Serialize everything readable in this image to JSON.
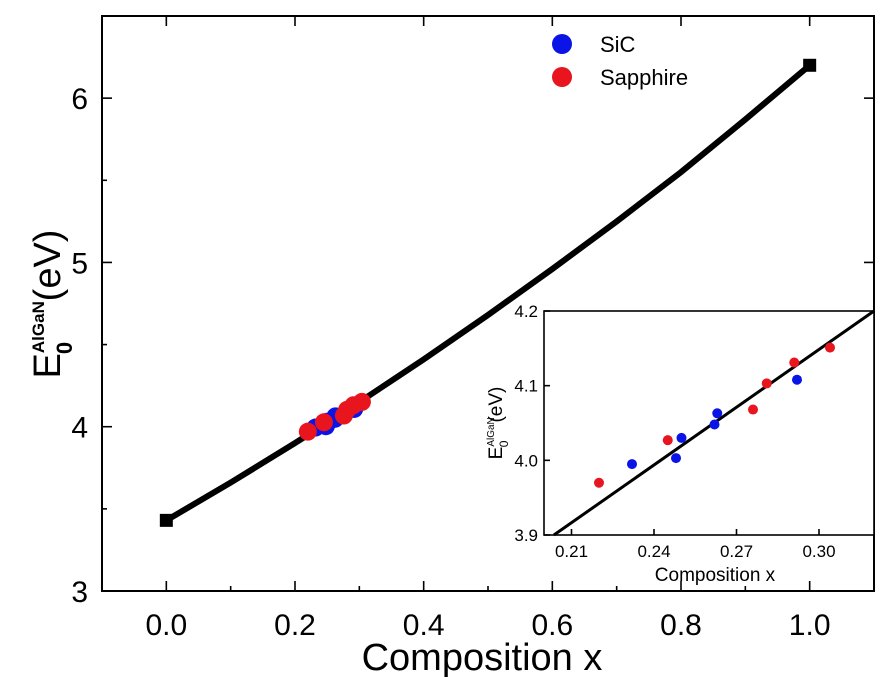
{
  "chart_data": [
    {
      "type": "line",
      "xlabel": "Composition x",
      "ylabel": {
        "main": "E",
        "sub": "0",
        "sup": "AlGaN",
        "unit": " (eV)"
      },
      "xlim": [
        -0.1,
        1.1
      ],
      "ylim": [
        3.0,
        6.5
      ],
      "xticks": [
        0.0,
        0.2,
        0.4,
        0.6,
        0.8,
        1.0
      ],
      "xtick_labels": [
        "0.0",
        "0.2",
        "0.4",
        "0.6",
        "0.8",
        "1.0"
      ],
      "yticks": [
        3,
        4,
        5,
        6
      ],
      "ytick_labels": [
        "3",
        "4",
        "5",
        "6"
      ],
      "grid": false,
      "legend_position": "top-right",
      "curve": {
        "x": [
          0.0,
          0.1,
          0.2,
          0.3,
          0.4,
          0.5,
          0.6,
          0.7,
          0.8,
          0.9,
          1.0
        ],
        "y": [
          3.43,
          3.66,
          3.9,
          4.15,
          4.41,
          4.68,
          4.96,
          5.25,
          5.55,
          5.87,
          6.2
        ]
      },
      "endpoints": {
        "x": [
          0.0,
          1.0
        ],
        "y": [
          3.43,
          6.2
        ],
        "color": "#000000"
      },
      "series": [
        {
          "name": "SiC",
          "color": "#0a14e6",
          "x": [
            0.232,
            0.248,
            0.25,
            0.262,
            0.263,
            0.292
          ],
          "y": [
            3.995,
            4.003,
            4.03,
            4.048,
            4.063,
            4.108
          ]
        },
        {
          "name": "Sapphire",
          "color": "#e8141e",
          "x": [
            0.22,
            0.245,
            0.276,
            0.281,
            0.291,
            0.304
          ],
          "y": [
            3.97,
            4.027,
            4.068,
            4.103,
            4.131,
            4.151
          ]
        }
      ]
    },
    {
      "type": "scatter",
      "inset": true,
      "xlabel": "Composition x",
      "ylabel": {
        "main": "E",
        "sub": "0",
        "sup": "AlGaN",
        "unit": "(eV)"
      },
      "xlim": [
        0.2,
        0.32
      ],
      "ylim": [
        3.9,
        4.2
      ],
      "xticks": [
        0.21,
        0.24,
        0.27,
        0.3
      ],
      "xtick_labels": [
        "0.21",
        "0.24",
        "0.27",
        "0.30"
      ],
      "yticks": [
        3.9,
        4.0,
        4.1,
        4.2
      ],
      "ytick_labels": [
        "3.9",
        "4.0",
        "4.1",
        "4.2"
      ],
      "grid": false,
      "fit_line": {
        "x": [
          0.2036,
          0.32
        ],
        "y": [
          3.9,
          4.2
        ]
      }
    }
  ]
}
